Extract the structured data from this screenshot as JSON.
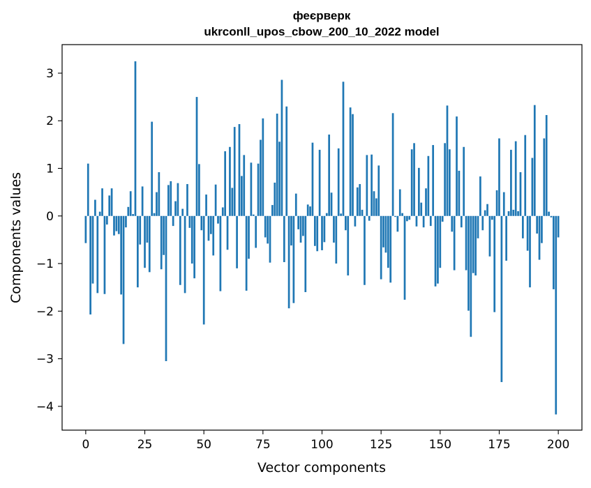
{
  "chart_data": {
    "type": "bar",
    "title_line1": "феєрверк",
    "title_line2": "ukrconll_upos_cbow_200_10_2022 model",
    "xlabel": "Vector components",
    "ylabel": "Components values",
    "xlim": [
      -10,
      210
    ],
    "ylim": [
      -4.5,
      3.6
    ],
    "xticks": [
      0,
      25,
      50,
      75,
      100,
      125,
      150,
      175,
      200
    ],
    "yticks": [
      -4,
      -3,
      -2,
      -1,
      0,
      1,
      2,
      3
    ],
    "xtick_labels": [
      "0",
      "25",
      "50",
      "75",
      "100",
      "125",
      "150",
      "175",
      "200"
    ],
    "ytick_labels": [
      "−4",
      "−3",
      "−2",
      "−1",
      "0",
      "1",
      "2",
      "3"
    ],
    "grid": false,
    "bar_color": "#1f77b4",
    "values": [
      -0.57,
      1.1,
      -2.07,
      -1.42,
      0.34,
      -1.62,
      0.09,
      0.58,
      -1.64,
      -0.18,
      0.43,
      0.58,
      -0.41,
      -0.32,
      -0.38,
      -1.65,
      -2.69,
      -0.24,
      0.19,
      0.52,
      0.04,
      3.25,
      -1.5,
      -0.6,
      0.62,
      -1.09,
      -0.56,
      -1.18,
      1.98,
      0.06,
      0.5,
      0.92,
      -1.12,
      -0.82,
      -3.05,
      0.65,
      0.73,
      -0.21,
      0.31,
      0.69,
      -1.45,
      0.15,
      -1.62,
      0.67,
      -0.25,
      -1.0,
      -1.31,
      2.5,
      1.09,
      -0.3,
      -2.28,
      0.45,
      -0.52,
      -0.38,
      -0.83,
      0.66,
      -0.16,
      -1.58,
      0.18,
      1.36,
      -0.71,
      1.45,
      0.59,
      1.87,
      -1.1,
      1.93,
      0.84,
      1.28,
      -1.57,
      -0.9,
      1.12,
      0.03,
      -0.67,
      1.1,
      1.6,
      2.05,
      -0.45,
      -0.58,
      -0.98,
      0.23,
      0.7,
      2.15,
      1.56,
      2.86,
      -0.97,
      2.3,
      -1.94,
      -0.62,
      -1.83,
      0.47,
      -0.28,
      -0.56,
      -0.42,
      -1.6,
      0.24,
      0.2,
      1.54,
      -0.63,
      -0.74,
      1.39,
      -0.72,
      -0.55,
      0.06,
      1.71,
      0.49,
      -0.56,
      -1.0,
      1.42,
      0.05,
      2.82,
      -0.3,
      -1.25,
      2.28,
      2.14,
      -0.22,
      0.6,
      0.67,
      0.13,
      -1.45,
      1.28,
      -0.1,
      1.29,
      0.52,
      0.37,
      1.06,
      -1.33,
      -0.66,
      -0.77,
      -1.09,
      -1.4,
      2.16,
      -0.02,
      -0.33,
      0.56,
      0.06,
      -1.76,
      -0.11,
      -0.08,
      1.4,
      1.53,
      -0.22,
      1.01,
      0.28,
      -0.24,
      0.58,
      1.26,
      -0.21,
      1.49,
      -1.48,
      -1.42,
      -1.09,
      -0.12,
      1.53,
      2.32,
      1.4,
      -0.33,
      -1.14,
      2.09,
      0.95,
      -0.24,
      1.45,
      -1.14,
      -1.99,
      -2.54,
      -1.2,
      -1.25,
      -0.47,
      0.83,
      -0.3,
      0.12,
      0.25,
      -0.85,
      -0.08,
      -2.02,
      0.54,
      1.63,
      -3.49,
      0.5,
      -0.94,
      0.1,
      1.39,
      0.13,
      1.57,
      0.1,
      0.92,
      -0.47,
      1.7,
      -0.73,
      -1.5,
      1.22,
      2.33,
      -0.37,
      -0.92,
      -0.57,
      1.63,
      2.12,
      0.09,
      -0.03,
      -1.54,
      -4.17,
      -0.45
    ]
  }
}
